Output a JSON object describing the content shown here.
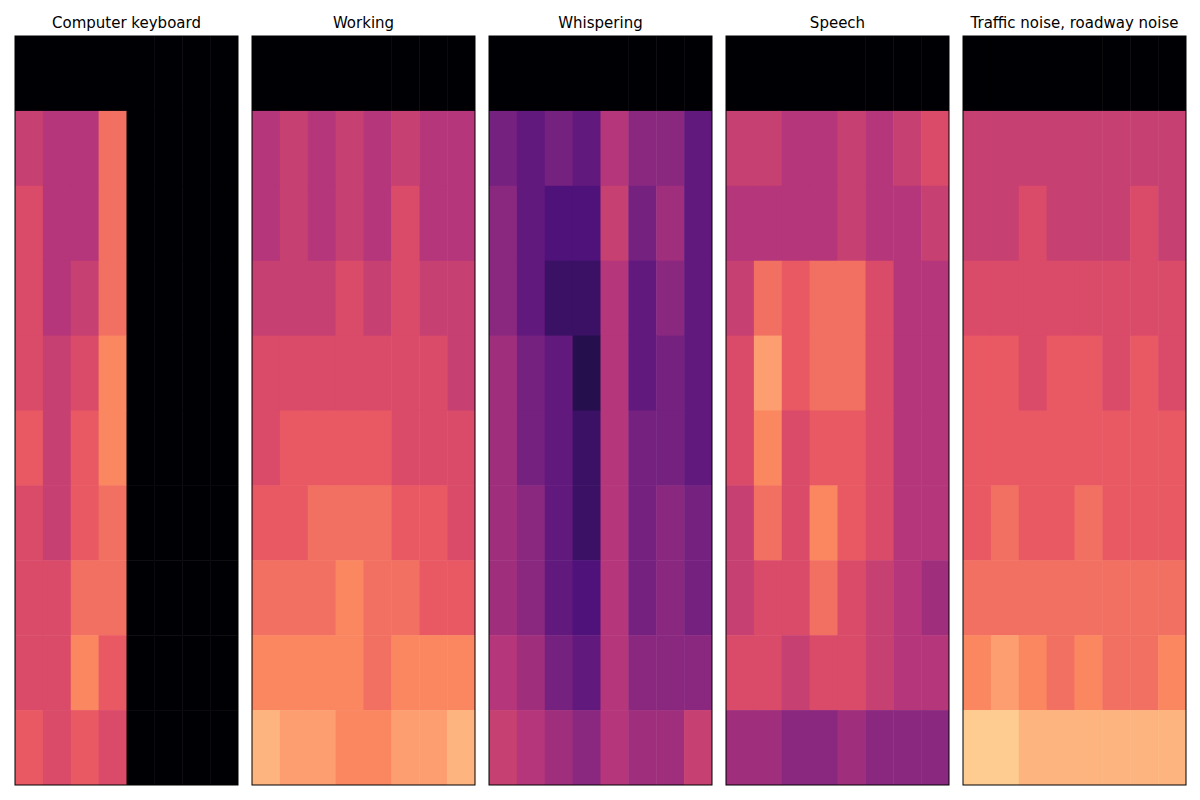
{
  "chart_data": [
    {
      "type": "heatmap",
      "title": "Computer keyboard",
      "color": "magma",
      "tick_labels": false,
      "zlim": [
        0,
        1
      ],
      "cells": [
        [
          0,
          0,
          0,
          0,
          0,
          0,
          0,
          0
        ],
        [
          0.55,
          0.5,
          0.5,
          0.7,
          0,
          0,
          0,
          0
        ],
        [
          0.6,
          0.5,
          0.5,
          0.7,
          0,
          0,
          0,
          0
        ],
        [
          0.6,
          0.5,
          0.55,
          0.7,
          0,
          0,
          0,
          0
        ],
        [
          0.6,
          0.55,
          0.6,
          0.75,
          0,
          0,
          0,
          0
        ],
        [
          0.65,
          0.55,
          0.65,
          0.75,
          0,
          0,
          0,
          0
        ],
        [
          0.6,
          0.55,
          0.65,
          0.7,
          0,
          0,
          0,
          0
        ],
        [
          0.6,
          0.6,
          0.7,
          0.7,
          0,
          0,
          0,
          0
        ],
        [
          0.6,
          0.6,
          0.75,
          0.65,
          0,
          0,
          0,
          0
        ],
        [
          0.65,
          0.6,
          0.65,
          0.6,
          0,
          0,
          0,
          0
        ]
      ]
    },
    {
      "type": "heatmap",
      "title": "Working",
      "color": "magma",
      "tick_labels": false,
      "zlim": [
        0,
        1
      ],
      "cells": [
        [
          0,
          0,
          0,
          0,
          0,
          0,
          0,
          0
        ],
        [
          0.5,
          0.55,
          0.5,
          0.55,
          0.5,
          0.55,
          0.5,
          0.5
        ],
        [
          0.5,
          0.55,
          0.5,
          0.55,
          0.5,
          0.6,
          0.5,
          0.5
        ],
        [
          0.55,
          0.55,
          0.55,
          0.6,
          0.55,
          0.6,
          0.55,
          0.55
        ],
        [
          0.6,
          0.6,
          0.6,
          0.6,
          0.6,
          0.6,
          0.6,
          0.55
        ],
        [
          0.6,
          0.65,
          0.65,
          0.65,
          0.65,
          0.6,
          0.6,
          0.6
        ],
        [
          0.65,
          0.65,
          0.7,
          0.7,
          0.7,
          0.65,
          0.65,
          0.6
        ],
        [
          0.7,
          0.7,
          0.7,
          0.75,
          0.7,
          0.7,
          0.65,
          0.65
        ],
        [
          0.75,
          0.75,
          0.75,
          0.75,
          0.7,
          0.75,
          0.75,
          0.75
        ],
        [
          0.85,
          0.8,
          0.8,
          0.75,
          0.75,
          0.8,
          0.8,
          0.85
        ]
      ]
    },
    {
      "type": "heatmap",
      "title": "Whispering",
      "color": "magma",
      "tick_labels": false,
      "zlim": [
        0,
        1
      ],
      "cells": [
        [
          0,
          0,
          0,
          0,
          0,
          0,
          0,
          0
        ],
        [
          0.35,
          0.3,
          0.35,
          0.3,
          0.5,
          0.4,
          0.4,
          0.3
        ],
        [
          0.4,
          0.3,
          0.25,
          0.25,
          0.55,
          0.35,
          0.45,
          0.3
        ],
        [
          0.4,
          0.3,
          0.2,
          0.2,
          0.5,
          0.3,
          0.4,
          0.3
        ],
        [
          0.45,
          0.35,
          0.3,
          0.15,
          0.5,
          0.3,
          0.35,
          0.3
        ],
        [
          0.45,
          0.35,
          0.3,
          0.2,
          0.5,
          0.35,
          0.35,
          0.3
        ],
        [
          0.45,
          0.4,
          0.3,
          0.2,
          0.5,
          0.35,
          0.4,
          0.35
        ],
        [
          0.45,
          0.4,
          0.3,
          0.25,
          0.5,
          0.35,
          0.4,
          0.35
        ],
        [
          0.5,
          0.45,
          0.35,
          0.3,
          0.5,
          0.4,
          0.4,
          0.4
        ],
        [
          0.55,
          0.5,
          0.45,
          0.4,
          0.5,
          0.45,
          0.45,
          0.55
        ]
      ]
    },
    {
      "type": "heatmap",
      "title": "Speech",
      "color": "magma",
      "tick_labels": false,
      "zlim": [
        0,
        1
      ],
      "cells": [
        [
          0,
          0,
          0,
          0,
          0,
          0,
          0,
          0
        ],
        [
          0.55,
          0.55,
          0.5,
          0.5,
          0.55,
          0.5,
          0.55,
          0.6
        ],
        [
          0.5,
          0.5,
          0.5,
          0.5,
          0.55,
          0.5,
          0.5,
          0.55
        ],
        [
          0.55,
          0.7,
          0.65,
          0.7,
          0.7,
          0.6,
          0.5,
          0.5
        ],
        [
          0.6,
          0.8,
          0.65,
          0.7,
          0.7,
          0.6,
          0.5,
          0.5
        ],
        [
          0.6,
          0.75,
          0.6,
          0.65,
          0.65,
          0.6,
          0.5,
          0.5
        ],
        [
          0.55,
          0.7,
          0.6,
          0.75,
          0.65,
          0.6,
          0.5,
          0.5
        ],
        [
          0.55,
          0.6,
          0.6,
          0.7,
          0.6,
          0.55,
          0.5,
          0.45
        ],
        [
          0.6,
          0.6,
          0.55,
          0.6,
          0.6,
          0.55,
          0.5,
          0.5
        ],
        [
          0.45,
          0.45,
          0.4,
          0.4,
          0.45,
          0.4,
          0.4,
          0.4
        ]
      ]
    },
    {
      "type": "heatmap",
      "title": "Traffic noise, roadway noise",
      "color": "magma",
      "tick_labels": false,
      "zlim": [
        0,
        1
      ],
      "cells": [
        [
          0,
          0,
          0,
          0,
          0,
          0,
          0,
          0
        ],
        [
          0.55,
          0.55,
          0.55,
          0.55,
          0.55,
          0.55,
          0.55,
          0.55
        ],
        [
          0.55,
          0.55,
          0.6,
          0.55,
          0.55,
          0.55,
          0.6,
          0.55
        ],
        [
          0.6,
          0.6,
          0.6,
          0.6,
          0.6,
          0.6,
          0.6,
          0.6
        ],
        [
          0.65,
          0.65,
          0.6,
          0.65,
          0.65,
          0.6,
          0.65,
          0.6
        ],
        [
          0.65,
          0.65,
          0.65,
          0.65,
          0.65,
          0.65,
          0.65,
          0.65
        ],
        [
          0.65,
          0.7,
          0.65,
          0.65,
          0.7,
          0.65,
          0.65,
          0.65
        ],
        [
          0.7,
          0.7,
          0.7,
          0.7,
          0.7,
          0.7,
          0.7,
          0.7
        ],
        [
          0.75,
          0.8,
          0.75,
          0.7,
          0.75,
          0.7,
          0.7,
          0.75
        ],
        [
          0.9,
          0.9,
          0.85,
          0.85,
          0.85,
          0.85,
          0.85,
          0.85
        ]
      ]
    }
  ]
}
